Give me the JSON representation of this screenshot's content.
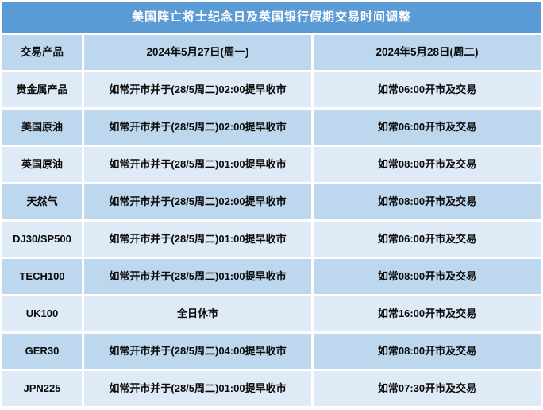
{
  "title": "美国阵亡将士纪念日及英国银行假期交易时间调整",
  "colors": {
    "title_bar": "#5B9BD5",
    "row_dark": "#BDD7EE",
    "row_light": "#DEEAF6",
    "gridline": "#FFFFFF",
    "title_text": "#FFFFFF",
    "body_text": "#0a0a0a"
  },
  "table": {
    "headers": [
      "交易产品",
      "2024年5月27日(周一)",
      "2024年5月28日(周二)"
    ],
    "rows": [
      {
        "product": "贵金属产品",
        "mon": "如常开市并于(28/5周二)02:00提早收市",
        "tue": "如常06:00开市及交易"
      },
      {
        "product": "美国原油",
        "mon": "如常开市并于(28/5周二)02:00提早收市",
        "tue": "如常06:00开市及交易"
      },
      {
        "product": "英国原油",
        "mon": "如常开市并于(28/5周二)01:00提早收市",
        "tue": "如常08:00开市及交易"
      },
      {
        "product": "天然气",
        "mon": "如常开市并于(28/5周二)02:00提早收市",
        "tue": "如常08:00开市及交易"
      },
      {
        "product": "DJ30/SP500",
        "mon": "如常开市并于(28/5周二)01:00提早收市",
        "tue": "如常06:00开市及交易"
      },
      {
        "product": "TECH100",
        "mon": "如常开市并于(28/5周二)01:00提早收市",
        "tue": "如常08:00开市及交易"
      },
      {
        "product": "UK100",
        "mon": "全日休市",
        "tue": "如常16:00开市及交易"
      },
      {
        "product": "GER30",
        "mon": "如常开市并于(28/5周二)04:00提早收市",
        "tue": "如常08:00开市及交易"
      },
      {
        "product": "JPN225",
        "mon": "如常开市并于(28/5周二)01:00提早收市",
        "tue": "如常07:30开市及交易"
      }
    ]
  }
}
